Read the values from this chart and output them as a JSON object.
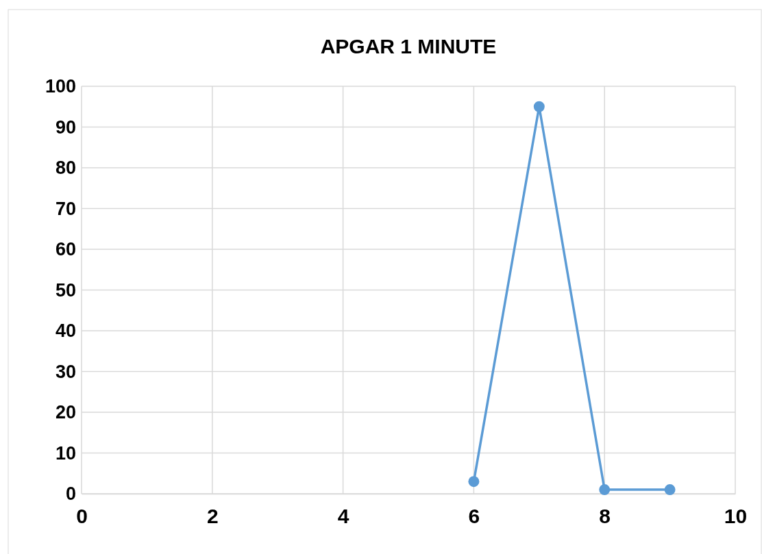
{
  "chart_data": {
    "type": "line",
    "title": "APGAR 1 MINUTE",
    "x": [
      6,
      7,
      8,
      9
    ],
    "series": [
      {
        "color": "#5b9bd5",
        "values": [
          3,
          95,
          1,
          1
        ]
      }
    ],
    "xlim": [
      0,
      10
    ],
    "xticks": [
      0,
      2,
      4,
      6,
      8,
      10
    ],
    "ylim": [
      0,
      100
    ],
    "yticks": [
      0,
      10,
      20,
      30,
      40,
      50,
      60,
      70,
      80,
      90,
      100
    ],
    "grid": true,
    "marker": "circle",
    "line_style": "solid"
  }
}
